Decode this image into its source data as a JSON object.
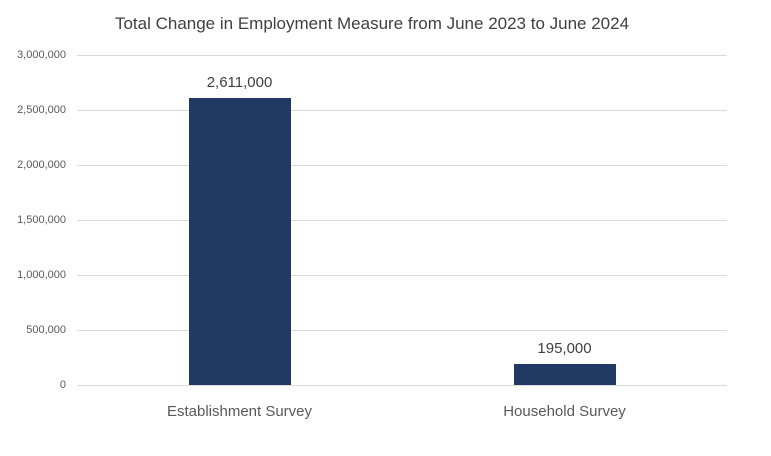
{
  "chart_data": {
    "type": "bar",
    "title": "Total Change in Employment Measure from June 2023 to June 2024",
    "categories": [
      "Establishment Survey",
      "Household Survey"
    ],
    "values": [
      2611000,
      195000
    ],
    "data_labels": [
      "2,611,000",
      "195,000"
    ],
    "xlabel": "",
    "ylabel": "",
    "ylim": [
      0,
      3000000
    ],
    "ytick_interval": 500000,
    "yticks": [
      {
        "value": 0,
        "label": "0"
      },
      {
        "value": 500000,
        "label": "500,000"
      },
      {
        "value": 1000000,
        "label": "1,000,000"
      },
      {
        "value": 1500000,
        "label": "1,500,000"
      },
      {
        "value": 2000000,
        "label": "2,000,000"
      },
      {
        "value": 2500000,
        "label": "2,500,000"
      },
      {
        "value": 3000000,
        "label": "3,000,000"
      }
    ],
    "grid": true,
    "legend": false,
    "colors": {
      "bar": "#213a64",
      "gridline": "#d9d9d9",
      "title_text": "#404040",
      "axis_text": "#595959",
      "data_label_text": "#404040",
      "background": "#ffffff"
    }
  }
}
